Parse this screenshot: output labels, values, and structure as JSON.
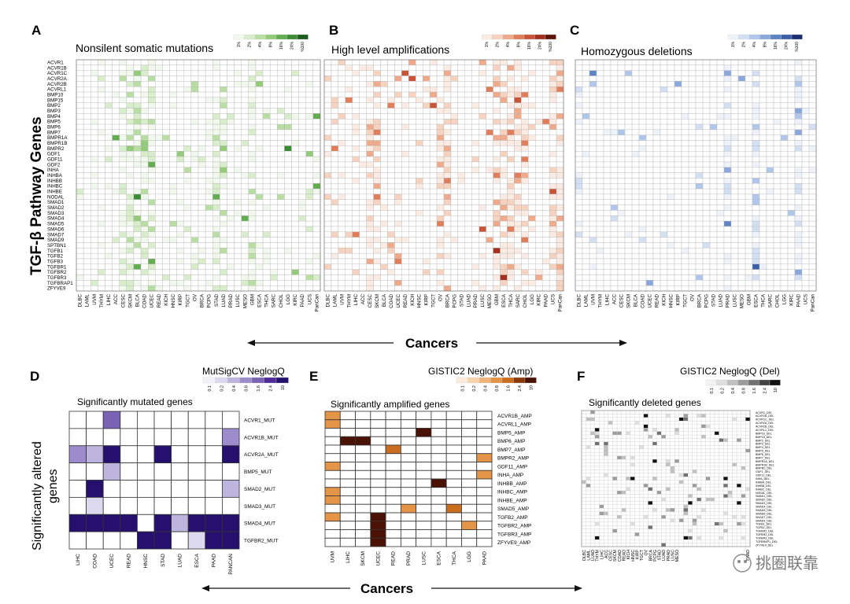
{
  "page": {
    "genes_axis_label": "TGF-β Pathway Genes",
    "cancers_label_top": "Cancers",
    "cancers_label_bottom": "Cancers",
    "sig_altered_label_line1": "Significantly altered",
    "sig_altered_label_line2": "genes",
    "watermark": "挑圈联靠"
  },
  "chart_data": [
    {
      "id": "A",
      "type": "heatmap",
      "panel_letter": "A",
      "title": "Nonsilent somatic mutations",
      "legend_labels": [
        "1%",
        "2%",
        "4%",
        "8%",
        "16%",
        "24%",
        "%100"
      ],
      "legend_colors": [
        "#f1f8ec",
        "#d8edca",
        "#b9dea3",
        "#93cb7a",
        "#62ad50",
        "#3a8d35",
        "#1d5c1e"
      ],
      "rows": [
        "ACVR1",
        "ACVR1B",
        "ACVR1C",
        "ACVR2A",
        "ACVR2B",
        "ACVRL1",
        "BMP10",
        "BMP15",
        "BMP2",
        "BMP3",
        "BMP4",
        "BMP5",
        "BMP6",
        "BMP7",
        "BMPR1A",
        "BMPR1B",
        "BMPR2",
        "GDF1",
        "GDF11",
        "GDF2",
        "INHA",
        "INHBA",
        "INHBB",
        "INHBC",
        "INHBE",
        "NODAL",
        "SMAD1",
        "SMAD2",
        "SMAD3",
        "SMAD4",
        "SMAD5",
        "SMAD6",
        "SMAD7",
        "SMAD9",
        "SPTBN1",
        "TGFB1",
        "TGFB2",
        "TGFB3",
        "TGFBR1",
        "TGFBR2",
        "TGFBR3",
        "TGFBRAP1",
        "ZFYVE9"
      ],
      "cols": [
        "DLBC",
        "LAML",
        "UVM",
        "THYM",
        "LIHC",
        "ACC",
        "CESC",
        "SKCM",
        "BLCA",
        "COAD",
        "UCEC",
        "READ",
        "KICH",
        "HNSC",
        "KIRP",
        "TGCT",
        "OV",
        "BRCA",
        "PCPG",
        "STAD",
        "LUAD",
        "PRAD",
        "LUSC",
        "MESO",
        "GBM",
        "ESCA",
        "THCA",
        "SARC",
        "CHOL",
        "LGG",
        "KIRC",
        "PAAD",
        "UCS",
        "PanCan"
      ]
    },
    {
      "id": "B",
      "type": "heatmap",
      "panel_letter": "B",
      "title": "High level amplifications",
      "legend_labels": [
        "1%",
        "2%",
        "4%",
        "8%",
        "16%",
        "24%",
        "%100"
      ],
      "legend_colors": [
        "#fbebe3",
        "#f6d2bf",
        "#eeaa8a",
        "#e07e5b",
        "#c8553a",
        "#a3301f",
        "#5e1408"
      ],
      "cols": [
        "DLBC",
        "LAML",
        "UVM",
        "THYM",
        "LIHC",
        "ACC",
        "CESC",
        "SKCM",
        "BLCA",
        "COAD",
        "UCEC",
        "READ",
        "KICH",
        "HNSC",
        "KIRP",
        "TGCT",
        "OV",
        "BRCA",
        "PCPG",
        "STAD",
        "LUAD",
        "PRAD",
        "LUSC",
        "MESO",
        "GBM",
        "ESCA",
        "THCA",
        "SARC",
        "CHOL",
        "LGG",
        "KIRC",
        "PAAD",
        "UCS",
        "PanCan"
      ]
    },
    {
      "id": "C",
      "type": "heatmap",
      "panel_letter": "C",
      "title": "Homozygous deletions",
      "legend_labels": [
        "1%",
        "2%",
        "4%",
        "8%",
        "16%",
        "24%",
        "%100"
      ],
      "legend_colors": [
        "#eef3fb",
        "#d3e0f3",
        "#b0c6ea",
        "#8aa8dc",
        "#5f84c6",
        "#3d5fa8",
        "#1c2f6e"
      ],
      "cols": [
        "DLBC",
        "LAML",
        "UVM",
        "THYM",
        "LIHC",
        "ACC",
        "CESC",
        "SKCM",
        "BLCA",
        "COAD",
        "UCEC",
        "READ",
        "KICH",
        "HNSC",
        "KIRP",
        "TGCT",
        "OV",
        "BRCA",
        "PCPG",
        "STAD",
        "LUAD",
        "PRAD",
        "LUSC",
        "MESO",
        "GBM",
        "ESCA",
        "THCA",
        "SARC",
        "CHOL",
        "LGG",
        "KIRC",
        "PAAD",
        "UCS",
        "PanCan"
      ]
    },
    {
      "id": "D",
      "type": "heatmap",
      "panel_letter": "D",
      "title": "Significantly mutated genes",
      "legend_title": "MutSigCV NeglogQ",
      "legend_labels": [
        "0.1",
        "0.2",
        "0.4",
        "0.8",
        "1.6",
        "2.4",
        "10"
      ],
      "legend_colors": [
        "#f2f0f8",
        "#dcd8ee",
        "#bdb5dd",
        "#9c8ccb",
        "#7a63b5",
        "#4f2c99",
        "#25106e"
      ],
      "rows": [
        "ACVR1_MUT",
        "ACVR1B_MUT",
        "ACVR2A_MUT",
        "BMP5_MUT",
        "SMAD2_MUT",
        "SMAD3_MUT",
        "SMAD4_MUT",
        "TGFBR2_MUT"
      ],
      "cols": [
        "LIHC",
        "COAD",
        "UCEC",
        "READ",
        "HNSC",
        "STAD",
        "LUAD",
        "ESCA",
        "PAAD",
        "PANCAN"
      ],
      "values": [
        [
          0,
          0,
          5,
          0,
          0,
          0,
          0,
          0,
          0,
          0
        ],
        [
          0,
          0,
          0,
          0,
          0,
          0,
          0,
          0,
          0,
          4
        ],
        [
          4,
          3,
          7,
          0,
          0,
          7,
          0,
          0,
          0,
          7
        ],
        [
          0,
          0,
          3,
          0,
          0,
          0,
          0,
          0,
          0,
          0
        ],
        [
          0,
          7,
          0,
          0,
          0,
          0,
          0,
          0,
          0,
          3
        ],
        [
          0,
          2,
          0,
          0,
          0,
          0,
          0,
          0,
          0,
          0
        ],
        [
          7,
          7,
          7,
          7,
          0,
          7,
          3,
          7,
          7,
          7
        ],
        [
          0,
          0,
          0,
          0,
          7,
          7,
          0,
          2,
          7,
          7
        ]
      ]
    },
    {
      "id": "E",
      "type": "heatmap",
      "panel_letter": "E",
      "title": "Significantly amplified genes",
      "legend_title": "GISTIC2 NeglogQ (Amp)",
      "legend_labels": [
        "0.1",
        "0.2",
        "0.4",
        "0.8",
        "1.6",
        "2.4",
        "10"
      ],
      "legend_colors": [
        "#fcebdb",
        "#f8d3ad",
        "#f0b377",
        "#e49547",
        "#c96d1e",
        "#8a3a0b",
        "#4a1305"
      ],
      "rows": [
        "ACVR1B_AMP",
        "ACVRL1_AMP",
        "BMP5_AMP",
        "BMP6_AMP",
        "BMP7_AMP",
        "BMPR2_AMP",
        "GDF11_AMP",
        "INHA_AMP",
        "INHBB_AMP",
        "INHBC_AMP",
        "INHBE_AMP",
        "SMAD5_AMP",
        "TGFB2_AMP",
        "TGFBR2_AMP",
        "TGFBR3_AMP",
        "ZFYVE9_AMP"
      ],
      "cols": [
        "UVM",
        "LIHC",
        "SKCM",
        "UCEC",
        "READ",
        "PRAD",
        "LUSC",
        "ESCA",
        "THCA",
        "LGG",
        "PAAD"
      ],
      "values": [
        [
          4,
          0,
          0,
          0,
          0,
          0,
          0,
          0,
          0,
          0,
          0
        ],
        [
          4,
          0,
          0,
          0,
          0,
          0,
          0,
          0,
          0,
          0,
          0
        ],
        [
          0,
          0,
          0,
          0,
          0,
          0,
          7,
          0,
          0,
          0,
          0
        ],
        [
          0,
          7,
          7,
          0,
          0,
          0,
          0,
          0,
          0,
          0,
          0
        ],
        [
          0,
          0,
          0,
          0,
          5,
          0,
          0,
          0,
          0,
          0,
          0
        ],
        [
          0,
          0,
          0,
          0,
          0,
          0,
          0,
          0,
          0,
          0,
          4
        ],
        [
          4,
          0,
          0,
          0,
          0,
          0,
          0,
          0,
          0,
          0,
          0
        ],
        [
          0,
          0,
          0,
          0,
          0,
          0,
          0,
          0,
          0,
          0,
          4
        ],
        [
          0,
          0,
          0,
          0,
          0,
          0,
          0,
          7,
          0,
          0,
          0
        ],
        [
          4,
          0,
          0,
          0,
          0,
          0,
          0,
          0,
          0,
          0,
          0
        ],
        [
          4,
          0,
          0,
          0,
          0,
          0,
          0,
          0,
          0,
          0,
          0
        ],
        [
          0,
          0,
          0,
          0,
          0,
          4,
          0,
          0,
          5,
          0,
          0
        ],
        [
          4,
          0,
          0,
          7,
          0,
          0,
          0,
          0,
          0,
          0,
          0
        ],
        [
          0,
          0,
          0,
          7,
          0,
          0,
          0,
          0,
          0,
          4,
          0
        ],
        [
          0,
          0,
          0,
          7,
          0,
          0,
          0,
          0,
          0,
          0,
          0
        ],
        [
          0,
          0,
          0,
          7,
          0,
          0,
          0,
          0,
          0,
          0,
          0
        ]
      ]
    },
    {
      "id": "F",
      "type": "heatmap",
      "panel_letter": "F",
      "title": "Significantly deleted genes",
      "legend_title": "GISTIC2 NeglogQ (Del)",
      "legend_labels": [
        "0.1",
        "0.2",
        "0.4",
        "0.8",
        "1.6",
        "2.4",
        "10"
      ],
      "legend_colors": [
        "#f3f3f3",
        "#dedede",
        "#c0c0c0",
        "#9c9c9c",
        "#717171",
        "#434343",
        "#111111"
      ],
      "rows": [
        "ACVR1_DEL",
        "ACVR1B_DEL",
        "ACVR1C_DEL",
        "ACVR2A_DEL",
        "ACVR2B_DEL",
        "ACVRL1_DEL",
        "BMP10_DEL",
        "BMP15_DEL",
        "BMP2_DEL",
        "BMP3_DEL",
        "BMP4_DEL",
        "BMP5_DEL",
        "BMP6_DEL",
        "BMP7_DEL",
        "BMPR1A_DEL",
        "BMPR1B_DEL",
        "BMPR2_DEL",
        "GDF1_DEL",
        "GDF11_DEL",
        "INHA_DEL",
        "INHBA_DEL",
        "INHBB_DEL",
        "INHBC_DEL",
        "NODAL_DEL",
        "SMAD1_DEL",
        "SMAD2_DEL",
        "SMAD3_DEL",
        "SMAD4_DEL",
        "SMAD5_DEL",
        "SMAD6_DEL",
        "SMAD7_DEL",
        "SMAD9_DEL",
        "TGFB1_DEL",
        "TGFB2_DEL",
        "TGFBR1_DEL",
        "TGFBR2_DEL",
        "TGFBR3_DEL",
        "TGFBRAP1_DEL",
        "ZFYVE9_DEL"
      ],
      "cols": [
        "DLBC",
        "LAML",
        "LUAD",
        "THYM",
        "LIHC",
        "ACC",
        "CESC",
        "SKCM",
        "COAD",
        "READ",
        "KICH",
        "HNSC",
        "KIRP",
        "TGCT",
        "OV",
        "BRCA",
        "PCPG",
        "STAD",
        "LUAD",
        "PRAD",
        "LUSC",
        "MESO",
        "",
        "",
        "",
        "",
        "",
        "",
        "",
        "",
        "",
        "",
        "",
        "",
        "",
        "",
        "",
        "PAAD",
        ""
      ]
    }
  ]
}
